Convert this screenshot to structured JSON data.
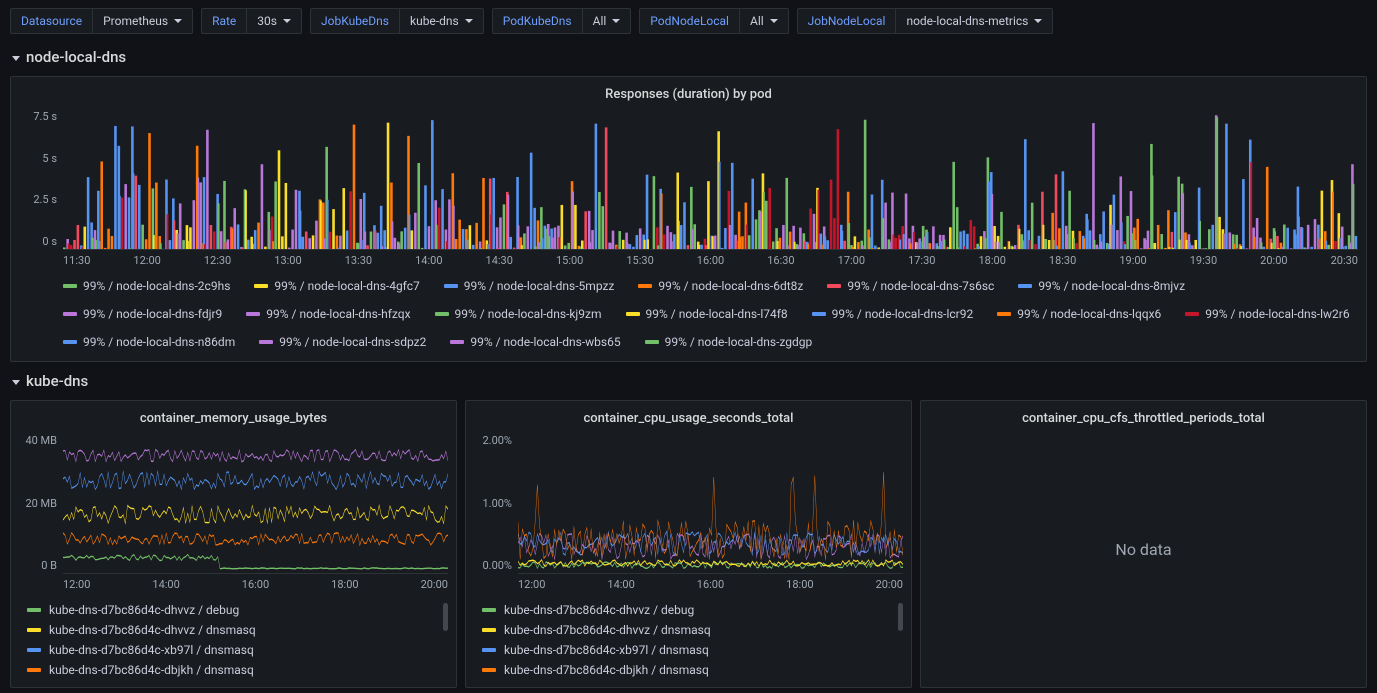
{
  "toolbar": [
    {
      "label": "Datasource",
      "value": "Prometheus"
    },
    {
      "label": "Rate",
      "value": "30s"
    },
    {
      "label": "JobKubeDns",
      "value": "kube-dns"
    },
    {
      "label": "PodKubeDns",
      "value": "All"
    },
    {
      "label": "PodNodeLocal",
      "value": "All"
    },
    {
      "label": "JobNodeLocal",
      "value": "node-local-dns-metrics"
    }
  ],
  "rows": {
    "r1": {
      "title": "node-local-dns"
    },
    "r2": {
      "title": "kube-dns"
    }
  },
  "big_chart": {
    "title": "Responses (duration) by pod",
    "type": "bar",
    "ylabels": [
      "7.5 s",
      "5 s",
      "2.5 s",
      "0 s"
    ],
    "ylim": [
      0,
      8.5
    ],
    "xlabels": [
      "11:30",
      "12:00",
      "12:30",
      "13:00",
      "13:30",
      "14:00",
      "14:30",
      "15:00",
      "15:30",
      "16:00",
      "16:30",
      "17:00",
      "17:30",
      "18:00",
      "18:30",
      "19:00",
      "19:30",
      "20:00",
      "20:30"
    ],
    "n_bars": 380,
    "seed": 7,
    "max_h": 8.2,
    "background_color": "#181b1f",
    "grid_color": "#2c3235",
    "label_color": "#9fa7b3",
    "label_fontsize": 11
  },
  "big_legend_colors": [
    "#73bf69",
    "#fade2a",
    "#5794f2",
    "#ff780a",
    "#f2495c",
    "#5794f2",
    "#b877d9",
    "#b877d9",
    "#73bf69",
    "#fade2a",
    "#5794f2",
    "#ff780a",
    "#c4162a",
    "#5794f2",
    "#b877d9",
    "#b877d9",
    "#73bf69"
  ],
  "big_legend_labels": [
    "99% / node-local-dns-2c9hs",
    "99% / node-local-dns-4gfc7",
    "99% / node-local-dns-5mpzz",
    "99% / node-local-dns-6dt8z",
    "99% / node-local-dns-7s6sc",
    "99% / node-local-dns-8mjvz",
    "99% / node-local-dns-fdjr9",
    "99% / node-local-dns-hfzqx",
    "99% / node-local-dns-kj9zm",
    "99% / node-local-dns-l74f8",
    "99% / node-local-dns-lcr92",
    "99% / node-local-dns-lqqx6",
    "99% / node-local-dns-lw2r6",
    "99% / node-local-dns-n86dm",
    "99% / node-local-dns-sdpz2",
    "99% / node-local-dns-wbs65",
    "99% / node-local-dns-zgdgp"
  ],
  "panels": {
    "mem": {
      "title": "container_memory_usage_bytes",
      "type": "line",
      "ylabels": [
        "40 MB",
        "20 MB",
        "0 B"
      ],
      "ylim": [
        0,
        45
      ],
      "xlabels": [
        "12:00",
        "14:00",
        "16:00",
        "18:00",
        "20:00"
      ],
      "series": [
        {
          "color": "#73bf69",
          "base": 5,
          "amp": 1,
          "drop_at": 0.4
        },
        {
          "color": "#ff780a",
          "base": 11,
          "amp": 2,
          "drop_at": null
        },
        {
          "color": "#fade2a",
          "base": 19,
          "amp": 3,
          "drop_at": null
        },
        {
          "color": "#5794f2",
          "base": 30,
          "amp": 3,
          "drop_at": null
        },
        {
          "color": "#b877d9",
          "base": 38,
          "amp": 2,
          "drop_at": null
        }
      ],
      "line_width": 1,
      "n_points": 180,
      "legend": [
        {
          "color": "#73bf69",
          "label": "kube-dns-d7bc86d4c-dhvvz / debug"
        },
        {
          "color": "#fade2a",
          "label": "kube-dns-d7bc86d4c-dhvvz / dnsmasq"
        },
        {
          "color": "#5794f2",
          "label": "kube-dns-d7bc86d4c-xb97l / dnsmasq"
        },
        {
          "color": "#ff780a",
          "label": "kube-dns-d7bc86d4c-dbjkh / dnsmasq"
        }
      ]
    },
    "cpu": {
      "title": "container_cpu_usage_seconds_total",
      "type": "line",
      "ylabels": [
        "2.00%",
        "1.00%",
        "0.00%"
      ],
      "ylim": [
        0,
        2.1
      ],
      "xlabels": [
        "12:00",
        "14:00",
        "16:00",
        "18:00",
        "20:00"
      ],
      "series": [
        {
          "color": "#73bf69",
          "base": 0.12,
          "amp": 0.05
        },
        {
          "color": "#fade2a",
          "base": 0.15,
          "amp": 0.05
        },
        {
          "color": "#b877d9",
          "base": 0.4,
          "amp": 0.2
        },
        {
          "color": "#5794f2",
          "base": 0.45,
          "amp": 0.18
        },
        {
          "color": "#ff780a",
          "base": 0.5,
          "amp": 0.3,
          "spikes": 0.03,
          "spike_h": 1.6
        }
      ],
      "line_width": 1,
      "n_points": 180,
      "legend": [
        {
          "color": "#73bf69",
          "label": "kube-dns-d7bc86d4c-dhvvz / debug"
        },
        {
          "color": "#fade2a",
          "label": "kube-dns-d7bc86d4c-dhvvz / dnsmasq"
        },
        {
          "color": "#5794f2",
          "label": "kube-dns-d7bc86d4c-xb97l / dnsmasq"
        },
        {
          "color": "#ff780a",
          "label": "kube-dns-d7bc86d4c-dbjkh / dnsmasq"
        }
      ]
    },
    "cfs": {
      "title": "container_cpu_cfs_throttled_periods_total",
      "nodata": "No data"
    }
  }
}
